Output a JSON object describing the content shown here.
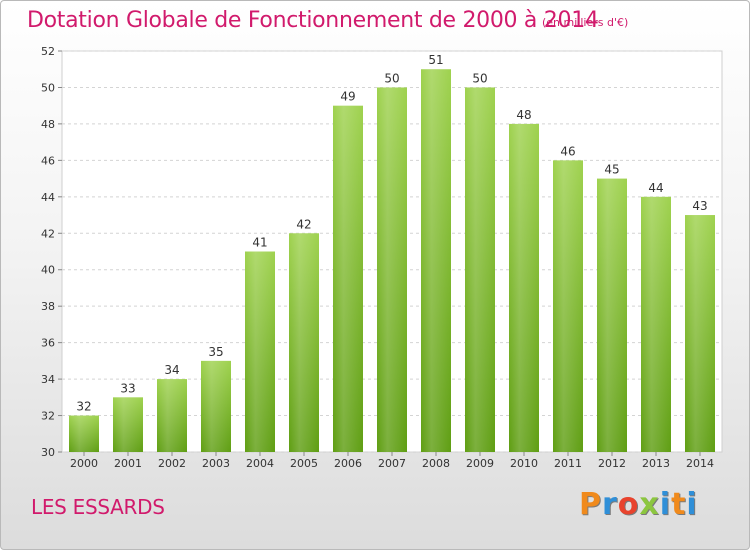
{
  "header": {
    "title": "Dotation Globale de Fonctionnement de 2000 à 2014",
    "subtitle": "(en milliers d'€)"
  },
  "footer": {
    "commune": "LES ESSARDS",
    "logo": "Proxiti",
    "logo_colors": [
      "#f08a1c",
      "#2f8fd8",
      "#e8432d",
      "#8cc63f",
      "#2f8fd8",
      "#f08a1c",
      "#2f8fd8"
    ]
  },
  "chart_data": {
    "type": "bar",
    "title": "Dotation Globale de Fonctionnement de 2000 à 2014",
    "subtitle": "(en milliers d'€)",
    "categories": [
      "2000",
      "2001",
      "2002",
      "2003",
      "2004",
      "2005",
      "2006",
      "2007",
      "2008",
      "2009",
      "2010",
      "2011",
      "2012",
      "2013",
      "2014"
    ],
    "values": [
      32,
      33,
      34,
      35,
      41,
      42,
      49,
      50,
      51,
      50,
      48,
      46,
      45,
      44,
      43
    ],
    "ylim": [
      30,
      52
    ],
    "yticks": [
      30,
      32,
      34,
      36,
      38,
      40,
      42,
      44,
      46,
      48,
      50,
      52
    ],
    "grid": true,
    "bar_color": "#7dbf2a",
    "xlabel": "",
    "ylabel": ""
  }
}
